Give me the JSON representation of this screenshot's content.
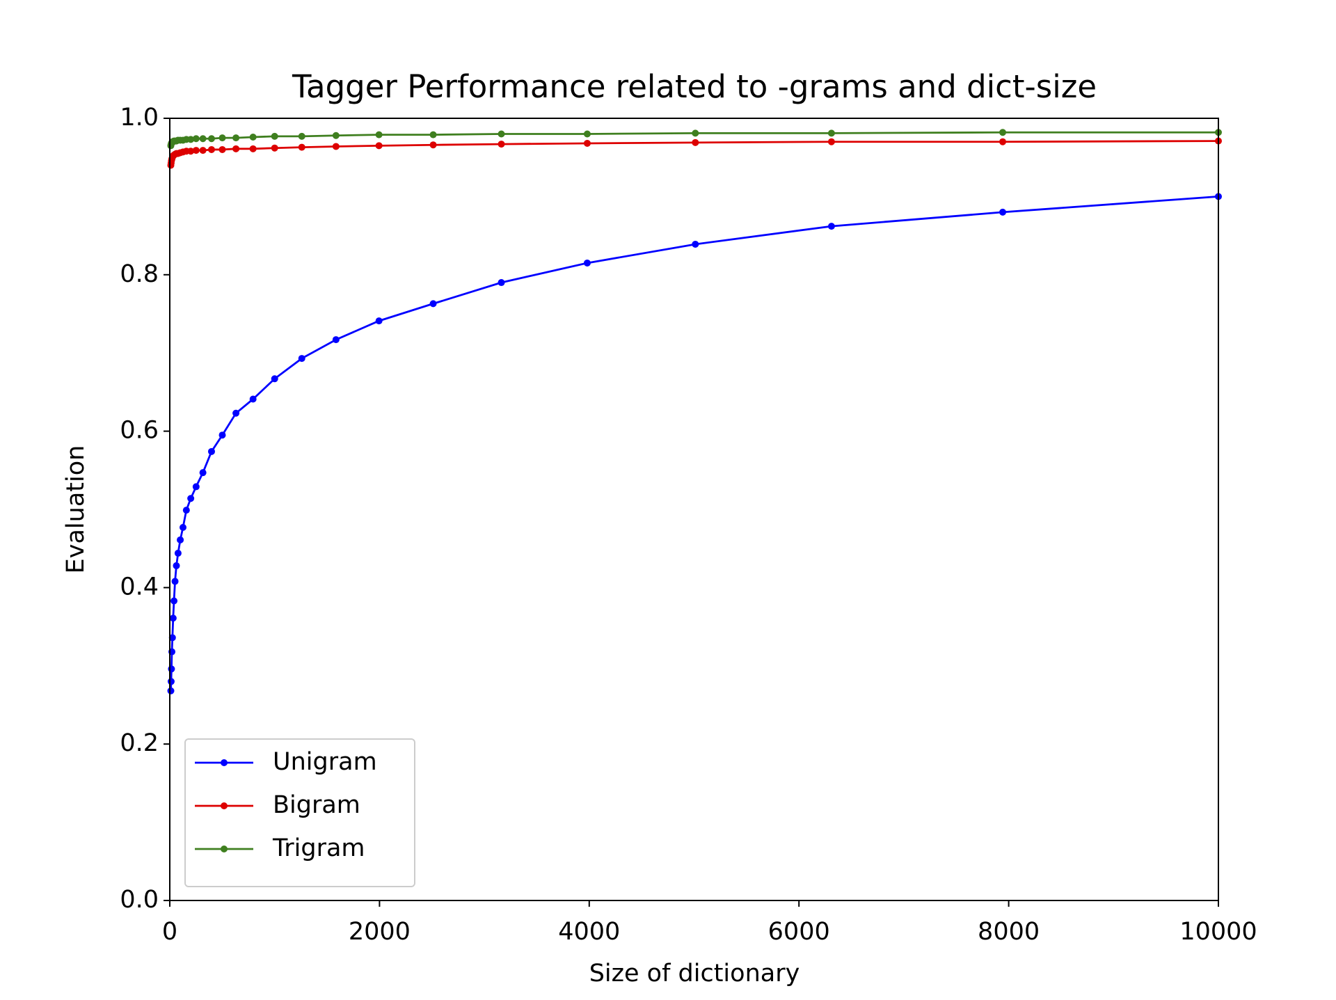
{
  "chart_data": {
    "type": "line",
    "title": "Tagger Performance related to -grams and dict-size",
    "x_label": "Size of dictionary",
    "y_label": "Evaluation",
    "x": [
      10,
      13,
      16,
      20,
      25,
      32,
      40,
      50,
      63,
      79,
      100,
      126,
      158,
      200,
      251,
      316,
      398,
      501,
      631,
      794,
      1000,
      1259,
      1585,
      1995,
      2512,
      3162,
      3981,
      5012,
      6310,
      7943,
      10000
    ],
    "series": [
      {
        "name": "Unigram",
        "color": "#0000ff",
        "values": [
          0.268,
          0.28,
          0.296,
          0.318,
          0.336,
          0.361,
          0.383,
          0.408,
          0.428,
          0.444,
          0.461,
          0.477,
          0.499,
          0.514,
          0.529,
          0.547,
          0.574,
          0.595,
          0.623,
          0.641,
          0.667,
          0.693,
          0.717,
          0.741,
          0.763,
          0.79,
          0.815,
          0.839,
          0.862,
          0.88,
          0.9
        ]
      },
      {
        "name": "Bigram",
        "color": "#dd0000",
        "values": [
          0.94,
          0.943,
          0.946,
          0.948,
          0.95,
          0.952,
          0.953,
          0.954,
          0.955,
          0.955,
          0.956,
          0.957,
          0.958,
          0.958,
          0.959,
          0.959,
          0.96,
          0.96,
          0.961,
          0.961,
          0.962,
          0.963,
          0.964,
          0.965,
          0.966,
          0.967,
          0.968,
          0.969,
          0.97,
          0.97,
          0.971
        ]
      },
      {
        "name": "Trigram",
        "color": "#3f7f1f",
        "values": [
          0.965,
          0.967,
          0.968,
          0.969,
          0.97,
          0.97,
          0.971,
          0.971,
          0.971,
          0.972,
          0.972,
          0.972,
          0.973,
          0.973,
          0.974,
          0.974,
          0.974,
          0.975,
          0.975,
          0.976,
          0.977,
          0.977,
          0.978,
          0.979,
          0.979,
          0.98,
          0.98,
          0.981,
          0.981,
          0.982,
          0.982
        ]
      }
    ],
    "xlim": [
      0,
      10000
    ],
    "xticks": [
      0,
      2000,
      4000,
      6000,
      8000,
      10000
    ],
    "ylim": [
      0,
      1
    ],
    "yticks": [
      {
        "value": 0,
        "label": "0.0"
      },
      0.2,
      0.4,
      0.6,
      0.8,
      {
        "value": 1,
        "label": "1.0"
      }
    ],
    "grid": false,
    "legend": "lower left"
  }
}
